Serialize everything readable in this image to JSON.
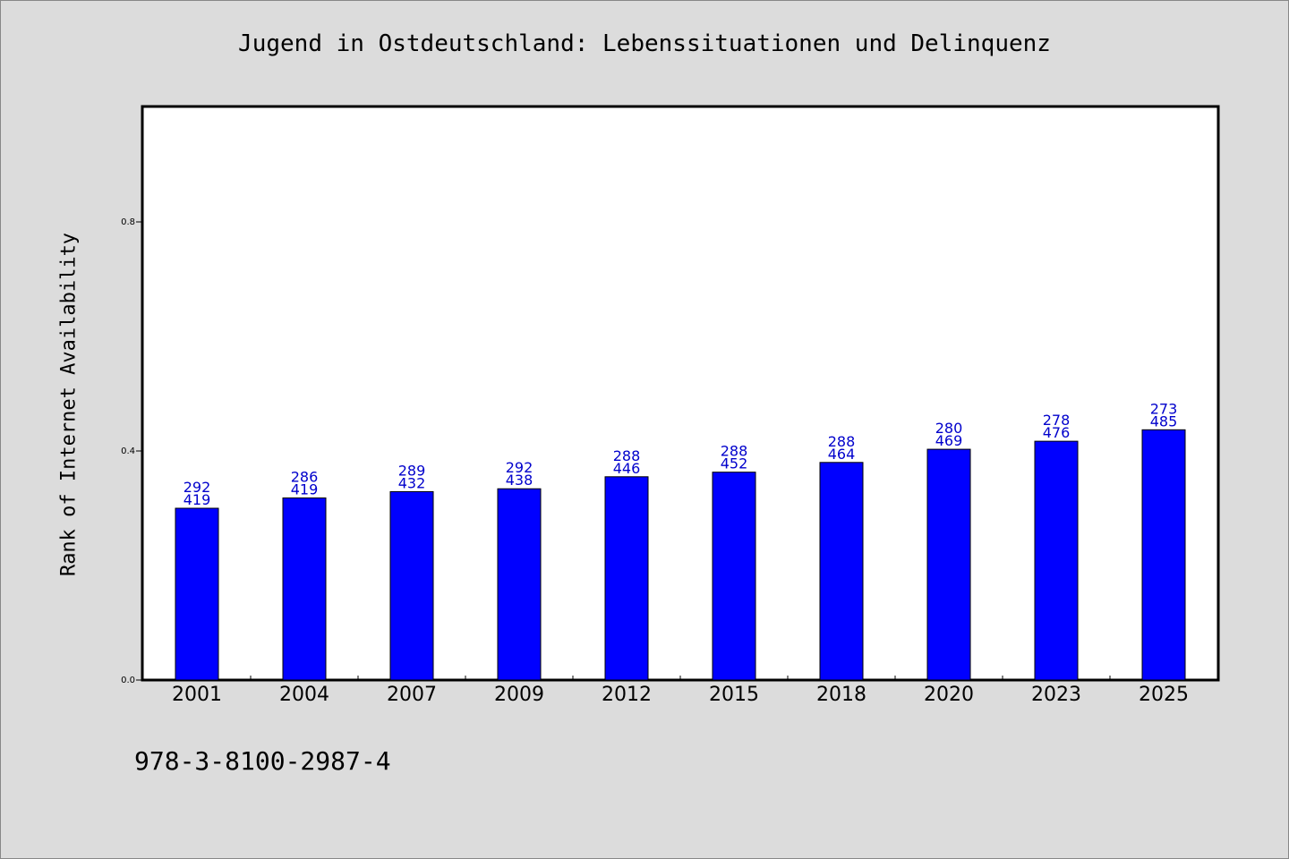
{
  "chart_data": {
    "type": "bar",
    "title": "Jugend in Ostdeutschland: Lebenssituationen und Delinquenz",
    "ylabel": "Rank of Internet Availability",
    "xlabel": "",
    "categories": [
      "2001",
      "2004",
      "2007",
      "2009",
      "2012",
      "2015",
      "2018",
      "2020",
      "2023",
      "2025"
    ],
    "values": [
      0.3,
      0.318,
      0.329,
      0.334,
      0.355,
      0.363,
      0.38,
      0.403,
      0.417,
      0.437
    ],
    "bar_labels_top": [
      "292",
      "286",
      "289",
      "292",
      "288",
      "288",
      "288",
      "280",
      "278",
      "273"
    ],
    "bar_labels_bottom": [
      "419",
      "419",
      "432",
      "438",
      "446",
      "452",
      "464",
      "469",
      "476",
      "485"
    ],
    "ylim": [
      0,
      1.0
    ],
    "yticks": [
      0.0,
      0.4,
      0.8
    ],
    "ytick_labels": [
      "0.0",
      "0.4",
      "0.8"
    ],
    "grid": false,
    "colors": {
      "bar": "#0000ff",
      "bar_label": "#0000cc",
      "background": "#dcdcdc",
      "plot_area": "#ffffff"
    }
  },
  "footer": {
    "isbn": "978-3-8100-2987-4"
  }
}
